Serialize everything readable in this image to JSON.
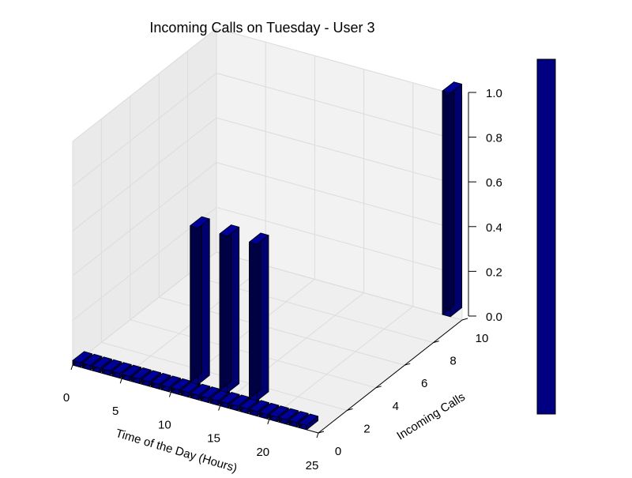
{
  "chart_data": {
    "type": "bar",
    "subtype": "3d-bar",
    "title": "Incoming Calls on Tuesday - User 3",
    "xlabel": "Time of the Day (Hours)",
    "ylabel": "Incoming Calls",
    "zlabel": "",
    "xlim": [
      0,
      25
    ],
    "ylim": [
      0,
      10
    ],
    "zlim": [
      0.0,
      1.0
    ],
    "xticks": [
      "0",
      "5",
      "10",
      "15",
      "20",
      "25"
    ],
    "yticks": [
      "0",
      "2",
      "4",
      "6",
      "8",
      "10"
    ],
    "zticks": [
      "0.0",
      "0.2",
      "0.4",
      "0.6",
      "0.8",
      "1.0"
    ],
    "x": [
      0,
      1,
      2,
      3,
      4,
      5,
      6,
      7,
      8,
      9,
      10,
      11,
      12,
      13,
      14,
      15,
      16,
      17,
      18,
      19,
      20,
      21,
      22,
      23
    ],
    "series": [
      {
        "values": [
          0,
          0,
          0,
          0,
          0,
          0,
          0,
          0,
          0,
          0,
          0,
          0,
          0,
          0,
          0,
          0,
          0,
          0,
          0,
          0,
          0,
          0,
          0,
          0
        ],
        "y": 0
      },
      {
        "values": [
          0.7,
          0.7,
          0.7
        ],
        "x": [
          11,
          14,
          17
        ],
        "y": 1
      },
      {
        "values": [
          1.0
        ],
        "x": [
          23
        ],
        "y": 10
      }
    ],
    "bar_color": "#000080",
    "grid": true,
    "colorbar": true
  }
}
